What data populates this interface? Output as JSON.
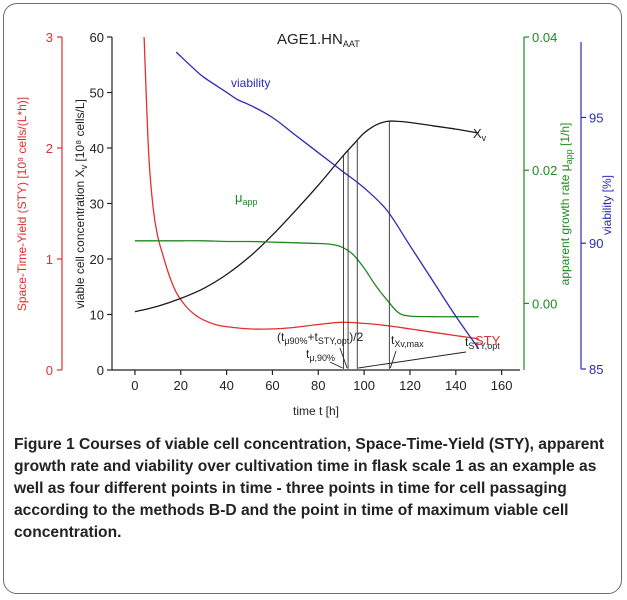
{
  "chart_data": {
    "type": "line",
    "title": "AGE1.HN",
    "title_sub": "AAT",
    "xlabel": "time t [h]",
    "xlim": [
      -10,
      168
    ],
    "xticks": [
      0,
      20,
      40,
      60,
      80,
      100,
      120,
      140,
      160
    ],
    "grid": false,
    "axes": {
      "sty": {
        "label": "Space-Time-Yield (STY) [10⁸ cells/(L*h)]",
        "range": [
          0,
          3
        ],
        "ticks": [
          0,
          1,
          2,
          3
        ],
        "tick_labels": [
          "0",
          "1",
          "2",
          "3"
        ],
        "color": "#e03030"
      },
      "xv": {
        "label_main": "viable cell concentration X",
        "label_sub": "v",
        "label_tail": " [10⁸ cells/L]",
        "range": [
          0,
          60
        ],
        "ticks": [
          0,
          10,
          20,
          30,
          40,
          50,
          60
        ],
        "tick_labels": [
          "0",
          "10",
          "20",
          "30",
          "40",
          "50",
          "60"
        ],
        "color": "#1a1a1a"
      },
      "mu": {
        "label_main": "apparent growth rate μ",
        "label_sub": "app",
        "label_tail": " [1/h]",
        "range": [
          -0.01,
          0.04
        ],
        "ticks": [
          0,
          0.02,
          0.04
        ],
        "tick_labels": [
          "0.00",
          "0.02",
          "0.04"
        ],
        "color": "#1f8a1f"
      },
      "viab": {
        "label": "viability [%]",
        "range": [
          85,
          98
        ],
        "ticks": [
          85,
          90,
          95
        ],
        "tick_labels": [
          "85",
          "90",
          "95"
        ],
        "color": "#2b2bb5"
      }
    },
    "series": [
      {
        "name": "STY",
        "axis": "sty",
        "color": "#e03030",
        "x": [
          4,
          6,
          8,
          10,
          12,
          15,
          18,
          22,
          26,
          30,
          35,
          40,
          50,
          60,
          70,
          80,
          90,
          100,
          110,
          120,
          130,
          140,
          150
        ],
        "y": [
          3.0,
          1.95,
          1.45,
          1.2,
          1.05,
          0.85,
          0.7,
          0.58,
          0.5,
          0.45,
          0.41,
          0.39,
          0.37,
          0.37,
          0.385,
          0.41,
          0.43,
          0.42,
          0.4,
          0.37,
          0.34,
          0.31,
          0.28
        ]
      },
      {
        "name": "X",
        "name_sub": "v",
        "axis": "xv",
        "color": "#1a1a1a",
        "x": [
          0,
          10,
          20,
          30,
          40,
          50,
          60,
          70,
          80,
          90,
          95,
          100,
          105,
          110,
          115,
          120,
          130,
          140,
          150
        ],
        "y": [
          10.5,
          11.5,
          12.9,
          14.7,
          17.2,
          20.4,
          24.3,
          28.7,
          33.3,
          38.2,
          40.5,
          42.7,
          44.1,
          44.8,
          44.8,
          44.6,
          44.0,
          43.4,
          42.7
        ]
      },
      {
        "name": "μ",
        "name_sub": "app",
        "axis": "mu",
        "color": "#1f8a1f",
        "x": [
          0,
          10,
          20,
          30,
          40,
          50,
          60,
          70,
          80,
          85,
          90,
          95,
          100,
          105,
          110,
          115,
          120,
          130,
          140,
          150
        ],
        "y": [
          0.0094,
          0.0094,
          0.0094,
          0.0094,
          0.0093,
          0.0093,
          0.0092,
          0.0091,
          0.009,
          0.0089,
          0.0085,
          0.0074,
          0.0053,
          0.0027,
          0.0005,
          -0.0014,
          -0.0019,
          -0.002,
          -0.002,
          -0.002
        ]
      },
      {
        "name": "viability",
        "axis": "viab",
        "color": "#2b2bb5",
        "x": [
          18,
          25,
          30,
          40,
          45,
          50,
          60,
          70,
          80,
          90,
          100,
          110,
          120,
          130,
          140,
          150
        ],
        "y": [
          97.6,
          97.0,
          96.6,
          96.0,
          95.7,
          95.5,
          95.0,
          94.3,
          93.6,
          92.9,
          92.2,
          91.3,
          89.9,
          88.5,
          87.1,
          85.8
        ]
      }
    ],
    "markers": [
      {
        "x": 91,
        "label_main": "t",
        "label_sub": "μ,90%"
      },
      {
        "x": 93,
        "label_main": "(t",
        "label_sub": "μ90%",
        "label_mid": "+t",
        "label_sub2": "STY,opt",
        "label_end": ")/2"
      },
      {
        "x": 97,
        "label_main": "t",
        "label_sub": "STY,opt"
      },
      {
        "x": 111,
        "label_main": "t",
        "label_sub": "Xv,max"
      }
    ],
    "annotations": {
      "viability_label": "viability",
      "mu_label": "μ",
      "mu_label_sub": "app",
      "xv_label": "X",
      "xv_label_sub": "v",
      "sty_label": "STY"
    }
  },
  "caption": {
    "label": "Figure 1",
    "text": "Courses of viable cell concentration, Space-Time-Yield (STY), apparent growth rate and viability over cultivation time in flask scale 1 as an example as well as four different points in time - three points in time for cell passaging according to the methods B-D and the point in time of maximum viable cell concentration."
  }
}
